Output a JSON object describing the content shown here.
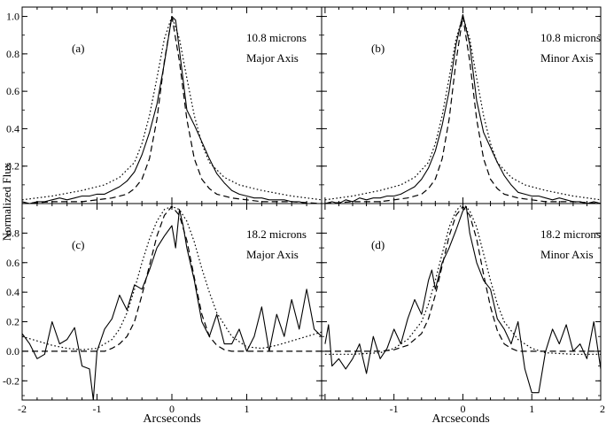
{
  "chart_data": {
    "type": "line",
    "ylabel": "Normalized Flux",
    "xlabel": "Arcseconds",
    "x_range": [
      -2,
      2
    ],
    "panels": [
      {
        "id": "a",
        "label": "(a)",
        "annotation_line1": "10.8 microns",
        "annotation_line2": "Major Axis",
        "ylim": [
          0,
          1.05
        ],
        "yticks": [
          "0.2",
          "0.4",
          "0.6",
          "0.8",
          "1.0"
        ],
        "ytick_values": [
          0.2,
          0.4,
          0.6,
          0.8,
          1.0
        ],
        "xtick_values": [],
        "xticks": [],
        "series": [
          {
            "style": "solid",
            "x": [
              -2.0,
              -1.9,
              -1.8,
              -1.7,
              -1.6,
              -1.5,
              -1.4,
              -1.3,
              -1.2,
              -1.1,
              -1.0,
              -0.9,
              -0.8,
              -0.7,
              -0.6,
              -0.5,
              -0.4,
              -0.3,
              -0.2,
              -0.1,
              0.0,
              0.05,
              0.1,
              0.2,
              0.3,
              0.4,
              0.5,
              0.6,
              0.7,
              0.8,
              0.9,
              1.0,
              1.1,
              1.2,
              1.3,
              1.4,
              1.5,
              1.6,
              1.7,
              1.8,
              1.9,
              2.0
            ],
            "y": [
              0.01,
              0.0,
              0.01,
              0.01,
              0.02,
              0.03,
              0.02,
              0.03,
              0.04,
              0.04,
              0.05,
              0.05,
              0.07,
              0.09,
              0.12,
              0.17,
              0.26,
              0.38,
              0.53,
              0.75,
              1.0,
              0.98,
              0.82,
              0.5,
              0.42,
              0.33,
              0.24,
              0.16,
              0.11,
              0.07,
              0.05,
              0.04,
              0.03,
              0.03,
              0.02,
              0.02,
              0.02,
              0.01,
              0.01,
              0.0,
              0.0,
              0.0
            ]
          },
          {
            "style": "dashed",
            "x": [
              -2.0,
              -1.6,
              -1.2,
              -1.0,
              -0.8,
              -0.6,
              -0.5,
              -0.4,
              -0.3,
              -0.2,
              -0.1,
              0.0,
              0.1,
              0.2,
              0.3,
              0.4,
              0.5,
              0.6,
              0.8,
              1.0,
              1.2,
              1.6,
              2.0
            ],
            "y": [
              0.0,
              0.01,
              0.01,
              0.02,
              0.03,
              0.05,
              0.08,
              0.13,
              0.24,
              0.45,
              0.76,
              1.0,
              0.76,
              0.45,
              0.24,
              0.13,
              0.08,
              0.05,
              0.03,
              0.02,
              0.01,
              0.01,
              0.0
            ]
          },
          {
            "style": "dotted",
            "x": [
              -2.0,
              -1.6,
              -1.2,
              -0.9,
              -0.7,
              -0.5,
              -0.4,
              -0.3,
              -0.2,
              -0.1,
              0.0,
              0.1,
              0.2,
              0.3,
              0.4,
              0.5,
              0.7,
              0.9,
              1.2,
              1.6,
              2.0
            ],
            "y": [
              0.02,
              0.04,
              0.07,
              0.1,
              0.14,
              0.22,
              0.32,
              0.47,
              0.67,
              0.88,
              1.0,
              0.88,
              0.67,
              0.47,
              0.32,
              0.22,
              0.14,
              0.1,
              0.07,
              0.04,
              0.02
            ]
          }
        ]
      },
      {
        "id": "b",
        "label": "(b)",
        "annotation_line1": "10.8 microns",
        "annotation_line2": "Minor Axis",
        "ylim": [
          0,
          1.05
        ],
        "yticks": [],
        "ytick_values": [
          0.2,
          0.4,
          0.6,
          0.8,
          1.0
        ],
        "xtick_values": [],
        "xticks": [],
        "series": [
          {
            "style": "solid",
            "x": [
              -2.0,
              -1.9,
              -1.8,
              -1.7,
              -1.6,
              -1.5,
              -1.4,
              -1.3,
              -1.2,
              -1.1,
              -1.0,
              -0.9,
              -0.8,
              -0.7,
              -0.6,
              -0.5,
              -0.4,
              -0.3,
              -0.2,
              -0.1,
              0.0,
              0.1,
              0.2,
              0.3,
              0.4,
              0.5,
              0.6,
              0.7,
              0.8,
              0.9,
              1.0,
              1.1,
              1.2,
              1.3,
              1.4,
              1.5,
              1.6,
              1.7,
              1.8,
              1.9,
              2.0
            ],
            "y": [
              0.0,
              0.01,
              0.0,
              0.02,
              0.01,
              0.03,
              0.02,
              0.03,
              0.03,
              0.04,
              0.04,
              0.05,
              0.07,
              0.09,
              0.13,
              0.19,
              0.28,
              0.42,
              0.6,
              0.85,
              1.01,
              0.85,
              0.55,
              0.38,
              0.3,
              0.22,
              0.15,
              0.1,
              0.06,
              0.05,
              0.04,
              0.04,
              0.03,
              0.02,
              0.03,
              0.02,
              0.01,
              0.01,
              0.0,
              0.01,
              0.0
            ]
          },
          {
            "style": "dashed",
            "x": [
              -2.0,
              -1.6,
              -1.2,
              -1.0,
              -0.8,
              -0.6,
              -0.5,
              -0.4,
              -0.3,
              -0.2,
              -0.1,
              0.0,
              0.1,
              0.2,
              0.3,
              0.4,
              0.5,
              0.6,
              0.8,
              1.0,
              1.2,
              1.6,
              2.0
            ],
            "y": [
              0.0,
              0.01,
              0.01,
              0.02,
              0.03,
              0.05,
              0.08,
              0.13,
              0.24,
              0.45,
              0.76,
              1.0,
              0.76,
              0.45,
              0.24,
              0.13,
              0.08,
              0.05,
              0.03,
              0.02,
              0.01,
              0.01,
              0.0
            ]
          },
          {
            "style": "dotted",
            "x": [
              -2.0,
              -1.6,
              -1.2,
              -0.9,
              -0.7,
              -0.5,
              -0.4,
              -0.3,
              -0.2,
              -0.1,
              0.0,
              0.1,
              0.2,
              0.3,
              0.4,
              0.5,
              0.7,
              0.9,
              1.2,
              1.6,
              2.0
            ],
            "y": [
              0.02,
              0.04,
              0.07,
              0.1,
              0.14,
              0.22,
              0.32,
              0.47,
              0.67,
              0.88,
              1.0,
              0.88,
              0.67,
              0.47,
              0.32,
              0.22,
              0.14,
              0.1,
              0.07,
              0.04,
              0.02
            ]
          }
        ]
      },
      {
        "id": "c",
        "label": "(c)",
        "annotation_line1": "18.2 microns",
        "annotation_line2": "Major Axis",
        "ylim": [
          -0.33,
          1.0
        ],
        "yticks": [
          "-0.2",
          "0.0",
          "0.2",
          "0.4",
          "0.6",
          "0.8"
        ],
        "ytick_values": [
          -0.2,
          0.0,
          0.2,
          0.4,
          0.6,
          0.8
        ],
        "xtick_values": [
          -2,
          -1,
          0,
          1
        ],
        "xticks": [
          "-2",
          "-1",
          "0",
          "1"
        ],
        "series": [
          {
            "style": "solid",
            "x": [
              -2.0,
              -1.9,
              -1.8,
              -1.7,
              -1.6,
              -1.5,
              -1.4,
              -1.3,
              -1.2,
              -1.1,
              -1.05,
              -1.0,
              -0.9,
              -0.8,
              -0.7,
              -0.6,
              -0.5,
              -0.4,
              -0.3,
              -0.2,
              -0.1,
              0.0,
              0.05,
              0.1,
              0.15,
              0.2,
              0.3,
              0.4,
              0.5,
              0.6,
              0.7,
              0.8,
              0.9,
              1.0,
              1.1,
              1.2,
              1.3,
              1.4,
              1.5,
              1.6,
              1.7,
              1.8,
              1.9,
              2.0
            ],
            "y": [
              0.12,
              0.05,
              -0.05,
              -0.02,
              0.2,
              0.05,
              0.08,
              0.16,
              -0.1,
              -0.12,
              -0.33,
              0.0,
              0.15,
              0.22,
              0.38,
              0.28,
              0.45,
              0.42,
              0.55,
              0.7,
              0.78,
              0.85,
              0.7,
              0.96,
              0.85,
              0.7,
              0.48,
              0.2,
              0.1,
              0.25,
              0.05,
              0.05,
              0.15,
              0.0,
              0.1,
              0.3,
              0.0,
              0.25,
              0.1,
              0.35,
              0.15,
              0.42,
              0.15,
              0.1
            ]
          },
          {
            "style": "dashed",
            "x": [
              -2.0,
              -1.6,
              -1.2,
              -0.9,
              -0.8,
              -0.7,
              -0.6,
              -0.5,
              -0.4,
              -0.3,
              -0.2,
              -0.1,
              0.0,
              0.1,
              0.2,
              0.3,
              0.4,
              0.5,
              0.6,
              0.7,
              0.8,
              1.0,
              1.4,
              2.0
            ],
            "y": [
              0.0,
              0.0,
              0.0,
              0.0,
              0.02,
              0.05,
              0.1,
              0.2,
              0.38,
              0.58,
              0.78,
              0.92,
              0.98,
              0.92,
              0.75,
              0.5,
              0.25,
              0.1,
              0.04,
              0.01,
              0.0,
              0.0,
              0.0,
              0.0
            ]
          },
          {
            "style": "dotted",
            "x": [
              -2.0,
              -1.8,
              -1.6,
              -1.4,
              -1.2,
              -1.0,
              -0.8,
              -0.7,
              -0.6,
              -0.5,
              -0.4,
              -0.3,
              -0.2,
              -0.1,
              0.0,
              0.1,
              0.2,
              0.3,
              0.4,
              0.5,
              0.6,
              0.8,
              1.0,
              1.2,
              1.4,
              1.6,
              1.8,
              2.0
            ],
            "y": [
              0.1,
              0.07,
              0.04,
              0.02,
              0.01,
              0.02,
              0.08,
              0.15,
              0.26,
              0.42,
              0.6,
              0.76,
              0.88,
              0.96,
              0.98,
              0.96,
              0.88,
              0.74,
              0.56,
              0.4,
              0.26,
              0.1,
              0.03,
              0.02,
              0.04,
              0.07,
              0.1,
              0.13
            ]
          }
        ]
      },
      {
        "id": "d",
        "label": "(d)",
        "annotation_line1": "18.2 microns",
        "annotation_line2": "Minor Axis",
        "ylim": [
          -0.33,
          1.0
        ],
        "yticks": [],
        "ytick_values": [
          -0.2,
          0.0,
          0.2,
          0.4,
          0.6,
          0.8
        ],
        "xtick_values": [
          -1,
          0,
          1,
          2
        ],
        "xticks": [
          "-1",
          "0",
          "1",
          "2"
        ],
        "series": [
          {
            "style": "solid",
            "x": [
              -2.0,
              -1.95,
              -1.9,
              -1.8,
              -1.7,
              -1.6,
              -1.5,
              -1.4,
              -1.3,
              -1.2,
              -1.1,
              -1.0,
              -0.9,
              -0.8,
              -0.7,
              -0.6,
              -0.5,
              -0.45,
              -0.4,
              -0.3,
              -0.2,
              -0.1,
              0.0,
              0.05,
              0.1,
              0.2,
              0.3,
              0.4,
              0.5,
              0.6,
              0.7,
              0.8,
              0.9,
              1.0,
              1.1,
              1.2,
              1.3,
              1.4,
              1.5,
              1.6,
              1.7,
              1.8,
              1.9,
              2.0
            ],
            "y": [
              0.05,
              0.18,
              -0.1,
              -0.05,
              -0.12,
              -0.05,
              0.05,
              -0.15,
              0.1,
              -0.05,
              0.02,
              0.15,
              0.05,
              0.22,
              0.35,
              0.25,
              0.48,
              0.55,
              0.42,
              0.6,
              0.7,
              0.82,
              0.95,
              0.98,
              0.8,
              0.6,
              0.48,
              0.42,
              0.22,
              0.15,
              0.05,
              0.2,
              -0.12,
              -0.28,
              -0.28,
              0.0,
              0.15,
              0.05,
              0.18,
              0.0,
              0.05,
              -0.05,
              0.2,
              -0.12
            ]
          },
          {
            "style": "dashed",
            "x": [
              -2.0,
              -1.6,
              -1.2,
              -1.0,
              -0.8,
              -0.6,
              -0.5,
              -0.4,
              -0.3,
              -0.2,
              -0.1,
              0.0,
              0.1,
              0.2,
              0.3,
              0.4,
              0.5,
              0.6,
              0.7,
              0.8,
              1.0,
              1.4,
              2.0
            ],
            "y": [
              0.0,
              0.0,
              0.0,
              0.01,
              0.04,
              0.12,
              0.22,
              0.38,
              0.58,
              0.78,
              0.92,
              0.98,
              0.92,
              0.76,
              0.52,
              0.3,
              0.14,
              0.05,
              0.02,
              0.0,
              0.0,
              0.0,
              0.0
            ]
          },
          {
            "style": "dotted",
            "x": [
              -2.0,
              -1.6,
              -1.2,
              -1.0,
              -0.8,
              -0.6,
              -0.5,
              -0.4,
              -0.3,
              -0.2,
              -0.1,
              0.0,
              0.1,
              0.2,
              0.3,
              0.4,
              0.5,
              0.6,
              0.8,
              1.0,
              1.2,
              1.6,
              2.0
            ],
            "y": [
              -0.02,
              -0.02,
              -0.01,
              0.02,
              0.08,
              0.2,
              0.32,
              0.48,
              0.66,
              0.84,
              0.95,
              1.0,
              0.95,
              0.84,
              0.66,
              0.48,
              0.32,
              0.2,
              0.08,
              0.02,
              -0.01,
              -0.02,
              -0.02
            ]
          }
        ]
      }
    ]
  }
}
